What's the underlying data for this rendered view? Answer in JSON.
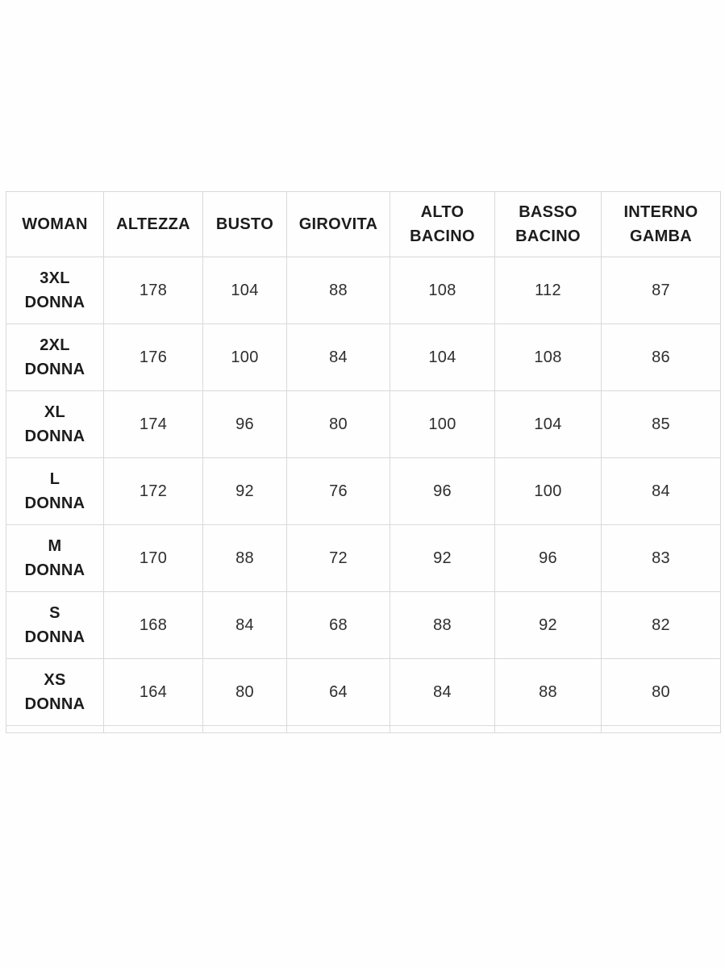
{
  "colors": {
    "background": "#fefefe",
    "grid_line": "#d9d9d9",
    "header_text": "#1c1c1c",
    "value_text": "#2e2e2e"
  },
  "size_chart": {
    "headers": [
      {
        "lines": [
          "WOMAN"
        ]
      },
      {
        "lines": [
          "ALTEZZA"
        ]
      },
      {
        "lines": [
          "BUSTO"
        ]
      },
      {
        "lines": [
          "GIROVITA"
        ]
      },
      {
        "lines": [
          "ALTO",
          "BACINO"
        ]
      },
      {
        "lines": [
          "BASSO",
          "BACINO"
        ]
      },
      {
        "lines": [
          "INTERNO",
          "GAMBA"
        ]
      }
    ],
    "rows": [
      {
        "size_lines": [
          "3XL",
          "DONNA"
        ],
        "values": [
          "178",
          "104",
          "88",
          "108",
          "112",
          "87"
        ]
      },
      {
        "size_lines": [
          "2XL",
          "DONNA"
        ],
        "values": [
          "176",
          "100",
          "84",
          "104",
          "108",
          "86"
        ]
      },
      {
        "size_lines": [
          "XL",
          "DONNA"
        ],
        "values": [
          "174",
          "96",
          "80",
          "100",
          "104",
          "85"
        ]
      },
      {
        "size_lines": [
          "L",
          "DONNA"
        ],
        "values": [
          "172",
          "92",
          "76",
          "96",
          "100",
          "84"
        ]
      },
      {
        "size_lines": [
          "M",
          "DONNA"
        ],
        "values": [
          "170",
          "88",
          "72",
          "92",
          "96",
          "83"
        ]
      },
      {
        "size_lines": [
          "S",
          "DONNA"
        ],
        "values": [
          "168",
          "84",
          "68",
          "88",
          "92",
          "82"
        ]
      },
      {
        "size_lines": [
          "XS",
          "DONNA"
        ],
        "values": [
          "164",
          "80",
          "64",
          "84",
          "88",
          "80"
        ]
      }
    ]
  },
  "chart_data": {
    "type": "table",
    "columns": [
      "WOMAN",
      "ALTEZZA",
      "BUSTO",
      "GIROVITA",
      "ALTO BACINO",
      "BASSO BACINO",
      "INTERNO GAMBA"
    ],
    "rows": [
      [
        "3XL DONNA",
        178,
        104,
        88,
        108,
        112,
        87
      ],
      [
        "2XL DONNA",
        176,
        100,
        84,
        104,
        108,
        86
      ],
      [
        "XL DONNA",
        174,
        96,
        80,
        100,
        104,
        85
      ],
      [
        "L DONNA",
        172,
        92,
        76,
        96,
        100,
        84
      ],
      [
        "M DONNA",
        170,
        88,
        72,
        92,
        96,
        83
      ],
      [
        "S DONNA",
        168,
        84,
        68,
        88,
        92,
        82
      ],
      [
        "XS DONNA",
        164,
        80,
        64,
        84,
        88,
        80
      ]
    ],
    "legend_position": "none",
    "grid": true
  }
}
